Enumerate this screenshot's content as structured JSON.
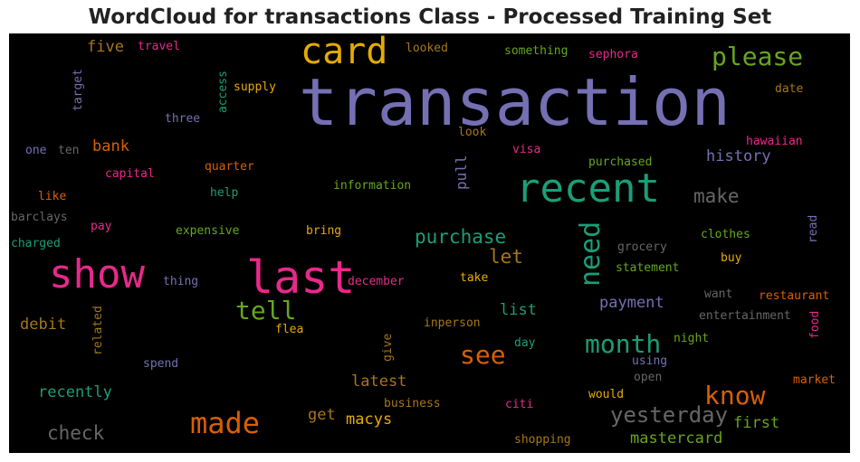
{
  "title": "WordCloud for transactions Class - Processed Training Set",
  "palette": {
    "purple": "#7570b3",
    "green": "#1b9e77",
    "orange": "#d95f02",
    "pink": "#e7298a",
    "lime": "#66a61e",
    "gold": "#e6ab02",
    "brown": "#a6761d",
    "gray": "#666666"
  },
  "words": {
    "transaction": "transaction",
    "last": "last",
    "show": "show",
    "recent": "recent",
    "card": "card",
    "please": "please",
    "made": "made",
    "need": "need",
    "month": "month",
    "tell": "tell",
    "see": "see",
    "know": "know",
    "yesterday": "yesterday",
    "purchase": "purchase",
    "make": "make",
    "check": "check",
    "let": "let",
    "macys": "macys",
    "first": "first",
    "mastercard": "mastercard",
    "payment": "payment",
    "history": "history",
    "list": "list",
    "latest": "latest",
    "recently": "recently",
    "debit": "debit",
    "bank": "bank",
    "five": "five",
    "get": "get",
    "pull": "pull",
    "travel": "travel",
    "looked": "looked",
    "something": "something",
    "sephora": "sephora",
    "target": "target",
    "access": "access",
    "supply": "supply",
    "date": "date",
    "three": "three",
    "one": "one",
    "ten": "ten",
    "look": "look",
    "visa": "visa",
    "hawaiian": "hawaiian",
    "purchased": "purchased",
    "capital": "capital",
    "quarter": "quarter",
    "information": "information",
    "like": "like",
    "help": "help",
    "barclays": "barclays",
    "read": "read",
    "pay": "pay",
    "expensive": "expensive",
    "bring": "bring",
    "grocery": "grocery",
    "clothes": "clothes",
    "charged": "charged",
    "buy": "buy",
    "statement": "statement",
    "thing": "thing",
    "december": "december",
    "take": "take",
    "want": "want",
    "restaurant": "restaurant",
    "related": "related",
    "inperson": "inperson",
    "entertainment": "entertainment",
    "flea": "flea",
    "food": "food",
    "give": "give",
    "night": "night",
    "day": "day",
    "spend": "spend",
    "using": "using",
    "open": "open",
    "market": "market",
    "would": "would",
    "business": "business",
    "citi": "citi",
    "shopping": "shopping"
  }
}
